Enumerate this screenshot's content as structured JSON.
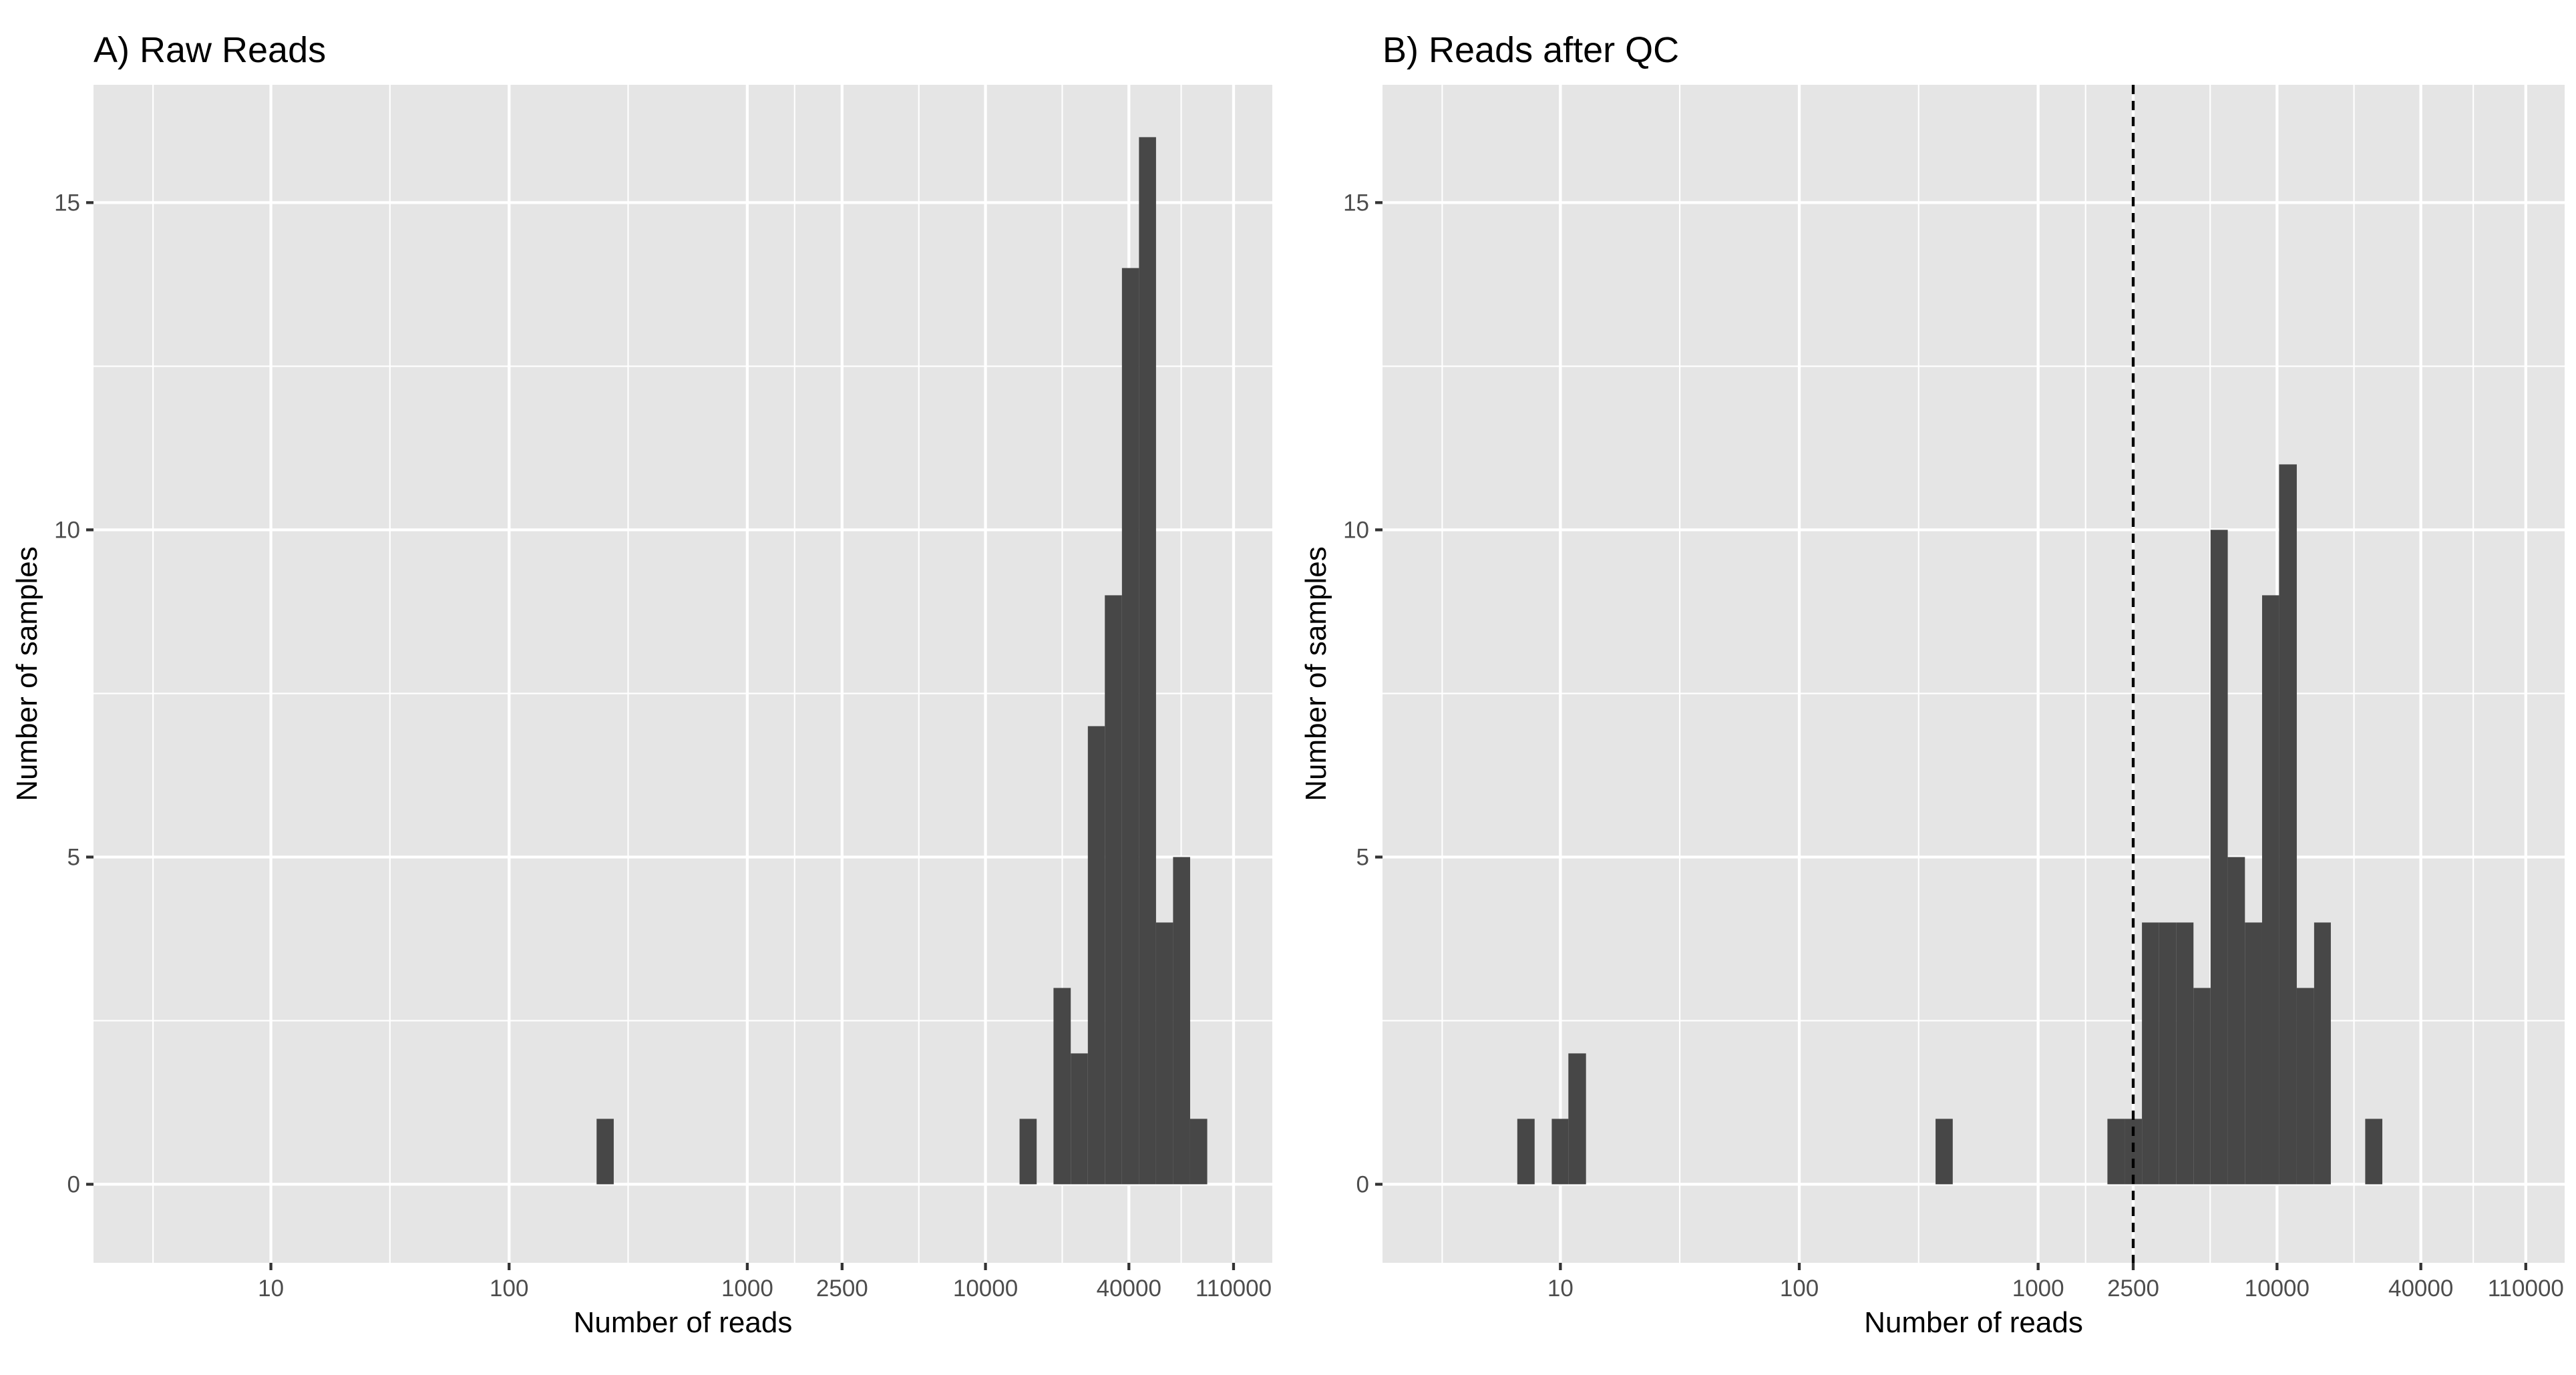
{
  "chart_data": [
    {
      "type": "histogram",
      "title": "A) Raw Reads",
      "xlabel": "Number of reads",
      "ylabel": "Number of samples",
      "x_scale": "log10",
      "xlim": [
        1.8,
        160000
      ],
      "ylim": [
        -1.2,
        16.8
      ],
      "x_ticks": [
        10,
        100,
        1000,
        2500,
        10000,
        40000,
        110000
      ],
      "x_minor_gridlines": [
        3.2,
        31.6,
        316,
        1580,
        5250,
        21000,
        66300
      ],
      "y_ticks": [
        0,
        5,
        10,
        15
      ],
      "y_minor_gridlines": [
        2.5,
        7.5,
        12.5
      ],
      "grid": true,
      "bars": [
        {
          "x0": 233,
          "x1": 275,
          "count": 1
        },
        {
          "x0": 13900,
          "x1": 16400,
          "count": 1
        },
        {
          "x0": 19300,
          "x1": 22800,
          "count": 3
        },
        {
          "x0": 22800,
          "x1": 26900,
          "count": 2
        },
        {
          "x0": 26900,
          "x1": 31700,
          "count": 7
        },
        {
          "x0": 31700,
          "x1": 37400,
          "count": 9
        },
        {
          "x0": 37400,
          "x1": 44100,
          "count": 14
        },
        {
          "x0": 44100,
          "x1": 52000,
          "count": 16
        },
        {
          "x0": 52000,
          "x1": 61300,
          "count": 4
        },
        {
          "x0": 61300,
          "x1": 72300,
          "count": 5
        },
        {
          "x0": 72300,
          "x1": 85300,
          "count": 1
        }
      ]
    },
    {
      "type": "histogram",
      "title": "B) Reads after QC",
      "xlabel": "Number of reads",
      "ylabel": "Number of samples",
      "x_scale": "log10",
      "xlim": [
        1.8,
        160000
      ],
      "ylim": [
        -1.2,
        16.8
      ],
      "x_ticks": [
        10,
        100,
        1000,
        2500,
        10000,
        40000,
        110000
      ],
      "x_minor_gridlines": [
        3.2,
        31.6,
        316,
        1580,
        5250,
        21000,
        66300
      ],
      "y_ticks": [
        0,
        5,
        10,
        15
      ],
      "y_minor_gridlines": [
        2.5,
        7.5,
        12.5
      ],
      "grid": true,
      "vline": {
        "x": 2500,
        "style": "dashed"
      },
      "bars": [
        {
          "x0": 6.6,
          "x1": 7.8,
          "count": 1
        },
        {
          "x0": 9.2,
          "x1": 10.8,
          "count": 1
        },
        {
          "x0": 10.8,
          "x1": 12.8,
          "count": 2
        },
        {
          "x0": 372,
          "x1": 439,
          "count": 1
        },
        {
          "x0": 1950,
          "x1": 2300,
          "count": 1
        },
        {
          "x0": 2300,
          "x1": 2720,
          "count": 1
        },
        {
          "x0": 2720,
          "x1": 3210,
          "count": 4
        },
        {
          "x0": 3210,
          "x1": 3780,
          "count": 4
        },
        {
          "x0": 3780,
          "x1": 4470,
          "count": 4
        },
        {
          "x0": 4470,
          "x1": 5270,
          "count": 3
        },
        {
          "x0": 5270,
          "x1": 6220,
          "count": 10
        },
        {
          "x0": 6220,
          "x1": 7340,
          "count": 5
        },
        {
          "x0": 7340,
          "x1": 8660,
          "count": 4
        },
        {
          "x0": 8660,
          "x1": 10200,
          "count": 9
        },
        {
          "x0": 10200,
          "x1": 12100,
          "count": 11
        },
        {
          "x0": 12100,
          "x1": 14300,
          "count": 3
        },
        {
          "x0": 14300,
          "x1": 16800,
          "count": 4
        },
        {
          "x0": 23400,
          "x1": 27600,
          "count": 1
        }
      ]
    }
  ]
}
